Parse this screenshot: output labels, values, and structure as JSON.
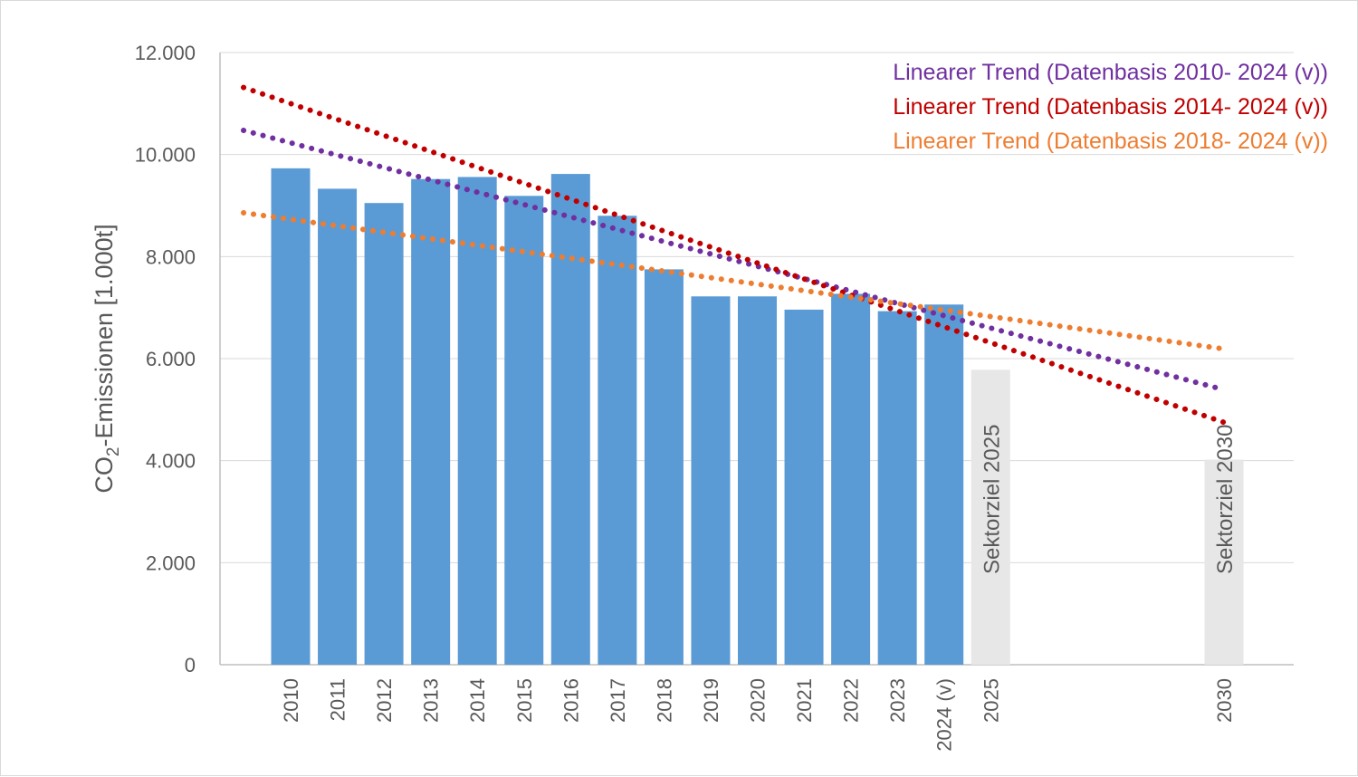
{
  "chart_data": {
    "type": "bar",
    "ylabel_main": "CO",
    "ylabel_sub": "2",
    "ylabel_rest": "-Emissionen [1.000t]",
    "ylim": [
      0,
      12000
    ],
    "y_ticks": [
      {
        "value": 0,
        "label": "0"
      },
      {
        "value": 2000,
        "label": "2.000"
      },
      {
        "value": 4000,
        "label": "4.000"
      },
      {
        "value": 6000,
        "label": "6.000"
      },
      {
        "value": 8000,
        "label": "8.000"
      },
      {
        "value": 10000,
        "label": "10.000"
      },
      {
        "value": 12000,
        "label": "12.000"
      }
    ],
    "grid": true,
    "categories": [
      "2010",
      "2011",
      "2012",
      "2013",
      "2014",
      "2015",
      "2016",
      "2017",
      "2018",
      "2019",
      "2020",
      "2021",
      "2022",
      "2023",
      "2024 (v)",
      "2025",
      "2030"
    ],
    "emissions": {
      "color": "#5b9bd5",
      "values": [
        9730,
        9330,
        9050,
        9520,
        9560,
        9190,
        9620,
        8800,
        7750,
        7220,
        7220,
        6960,
        7270,
        6930,
        7060
      ]
    },
    "targets": [
      {
        "label": "Sektorziel 2025",
        "category": "2025",
        "value": 5780
      },
      {
        "label": "Sektorziel 2030",
        "category": "2030",
        "value": 4020
      }
    ],
    "target_color": "#e7e7e7",
    "trends": [
      {
        "name": "Linearer Trend (Datenbasis 2010- 2024 (v))",
        "color": "#7030a0",
        "start": {
          "category": "2010",
          "value": 10230
        },
        "end": {
          "category": "2030",
          "value": 5390
        }
      },
      {
        "name": "Linearer Trend (Datenbasis 2014- 2024 (v))",
        "color": "#c00000",
        "start": {
          "category": "2010",
          "value": 11000
        },
        "end": {
          "category": "2030",
          "value": 4750
        }
      },
      {
        "name": "Linearer Trend (Datenbasis 2018- 2024 (v))",
        "color": "#ed7d31",
        "start": {
          "category": "2010",
          "value": 8730
        },
        "end": {
          "category": "2030",
          "value": 6190
        }
      }
    ],
    "legend_position": "top-right"
  }
}
